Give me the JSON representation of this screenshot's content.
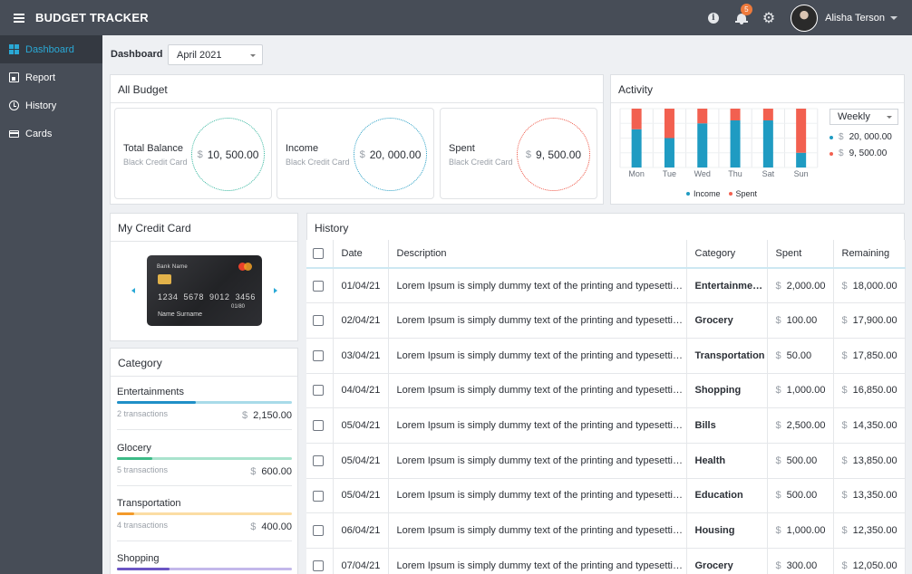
{
  "app": {
    "title": "BUDGET TRACKER",
    "notification_count": "5",
    "user_name": "Alisha Terson"
  },
  "sidebar": {
    "items": [
      {
        "label": "Dashboard"
      },
      {
        "label": "Report"
      },
      {
        "label": "History"
      },
      {
        "label": "Cards"
      }
    ]
  },
  "toolbar": {
    "breadcrumb": "Dashboard",
    "month": "April 2021"
  },
  "all_budget": {
    "title": "All Budget",
    "cards": [
      {
        "label": "Total Balance",
        "sub": "Black Credit Card",
        "currency": "$",
        "amount": "10, 500.00",
        "ring_color": "#2db39a"
      },
      {
        "label": "Income",
        "sub": "Black Credit Card",
        "currency": "$",
        "amount": "20, 000.00",
        "ring_color": "#1f9bc2"
      },
      {
        "label": "Spent",
        "sub": "Black Credit Card",
        "currency": "$",
        "amount": "9, 500.00",
        "ring_color": "#ee4d3c"
      }
    ]
  },
  "activity": {
    "title": "Activity",
    "period": "Weekly",
    "legend": [
      {
        "color": "#1f9bc2",
        "currency": "$",
        "amount": "20, 000.00"
      },
      {
        "color": "#f26050",
        "currency": "$",
        "amount": "9, 500.00"
      }
    ],
    "bottom_legend": [
      {
        "name": "Income",
        "color": "#1f9bc2"
      },
      {
        "name": "Spent",
        "color": "#f26050"
      }
    ]
  },
  "chart_data": {
    "type": "bar",
    "stacked": true,
    "categories": [
      "Mon",
      "Tue",
      "Wed",
      "Thu",
      "Sat",
      "Sun"
    ],
    "series": [
      {
        "name": "Income",
        "color": "#1f9bc2",
        "values": [
          65,
          50,
          75,
          80,
          80,
          25
        ]
      },
      {
        "name": "Spent",
        "color": "#f26050",
        "values": [
          35,
          50,
          25,
          20,
          20,
          75
        ]
      }
    ],
    "ylim": [
      0,
      100
    ],
    "grid": true
  },
  "credit_card": {
    "title": "My Credit Card",
    "bank": "Bank Name",
    "number": "1234 5678 9012 3456",
    "expiry": "01/80",
    "holder": "Name Surname"
  },
  "category": {
    "title": "Category",
    "items": [
      {
        "name": "Entertainments",
        "transactions": "2 transactions",
        "currency": "$",
        "amount": "2,150.00",
        "color": "#1f8fc7",
        "track": "#a8dbe9",
        "fill": 0.45
      },
      {
        "name": "Glocery",
        "transactions": "5 transactions",
        "currency": "$",
        "amount": "600.00",
        "color": "#3dbb87",
        "track": "#a9e3cd",
        "fill": 0.2
      },
      {
        "name": "Transportation",
        "transactions": "4 transactions",
        "currency": "$",
        "amount": "400.00",
        "color": "#f39a2a",
        "track": "#fbdda4",
        "fill": 0.1
      },
      {
        "name": "Shopping",
        "transactions": "",
        "currency": "",
        "amount": "",
        "color": "#6b55c4",
        "track": "#c3b8ea",
        "fill": 0.3
      }
    ]
  },
  "history": {
    "title": "History",
    "columns": [
      "Date",
      "Description",
      "Category",
      "Spent",
      "Remaining"
    ],
    "currency": "$",
    "rows": [
      {
        "date": "01/04/21",
        "desc": "Lorem Ipsum is simply dummy text of the printing and typesetting industry.",
        "category": "Entertainments",
        "spent": "2,000.00",
        "remaining": "18,000.00"
      },
      {
        "date": "02/04/21",
        "desc": "Lorem Ipsum is simply dummy text of the printing and typesetting industry.",
        "category": "Grocery",
        "spent": "100.00",
        "remaining": "17,900.00"
      },
      {
        "date": "03/04/21",
        "desc": "Lorem Ipsum is simply dummy text of the printing and typesetting industry.",
        "category": "Transportation",
        "spent": "50.00",
        "remaining": "17,850.00"
      },
      {
        "date": "04/04/21",
        "desc": "Lorem Ipsum is simply dummy text of the printing and typesetting industry.",
        "category": "Shopping",
        "spent": "1,000.00",
        "remaining": "16,850.00"
      },
      {
        "date": "05/04/21",
        "desc": "Lorem Ipsum is simply dummy text of the printing and typesetting industry.",
        "category": "Bills",
        "spent": "2,500.00",
        "remaining": "14,350.00"
      },
      {
        "date": "05/04/21",
        "desc": "Lorem Ipsum is simply dummy text of the printing and typesetting industry.",
        "category": "Health",
        "spent": "500.00",
        "remaining": "13,850.00"
      },
      {
        "date": "05/04/21",
        "desc": "Lorem Ipsum is simply dummy text of the printing and typesetting industry.",
        "category": "Education",
        "spent": "500.00",
        "remaining": "13,350.00"
      },
      {
        "date": "06/04/21",
        "desc": "Lorem Ipsum is simply dummy text of the printing and typesetting industry.",
        "category": "Housing",
        "spent": "1,000.00",
        "remaining": "12,350.00"
      },
      {
        "date": "07/04/21",
        "desc": "Lorem Ipsum is simply dummy text of the printing and typesetting industry.",
        "category": "Grocery",
        "spent": "300.00",
        "remaining": "12,050.00"
      }
    ]
  }
}
